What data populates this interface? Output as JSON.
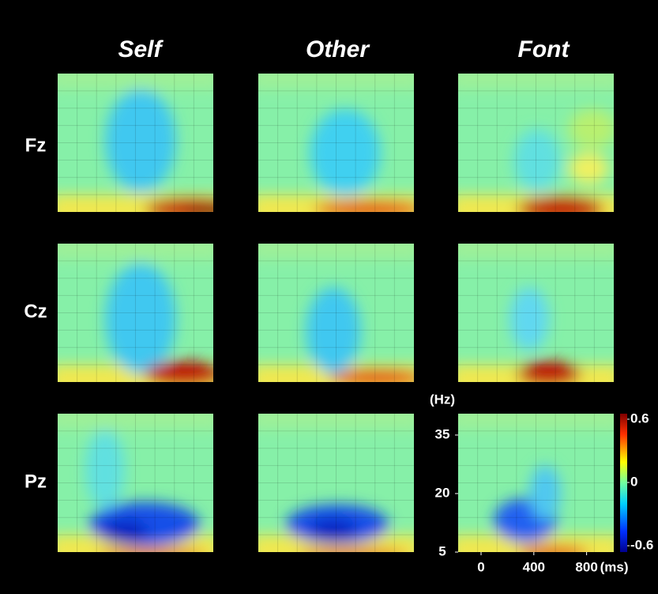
{
  "columns": [
    "Self",
    "Other",
    "Font"
  ],
  "rows": [
    "Fz",
    "Cz",
    "Pz"
  ],
  "y_axis": {
    "unit": "(Hz)",
    "ticks": [
      35,
      20,
      5
    ]
  },
  "x_axis": {
    "unit": "(ms)",
    "ticks": [
      0,
      400,
      800
    ]
  },
  "colorbar": {
    "ticks": [
      0.6,
      0,
      -0.6
    ]
  }
}
